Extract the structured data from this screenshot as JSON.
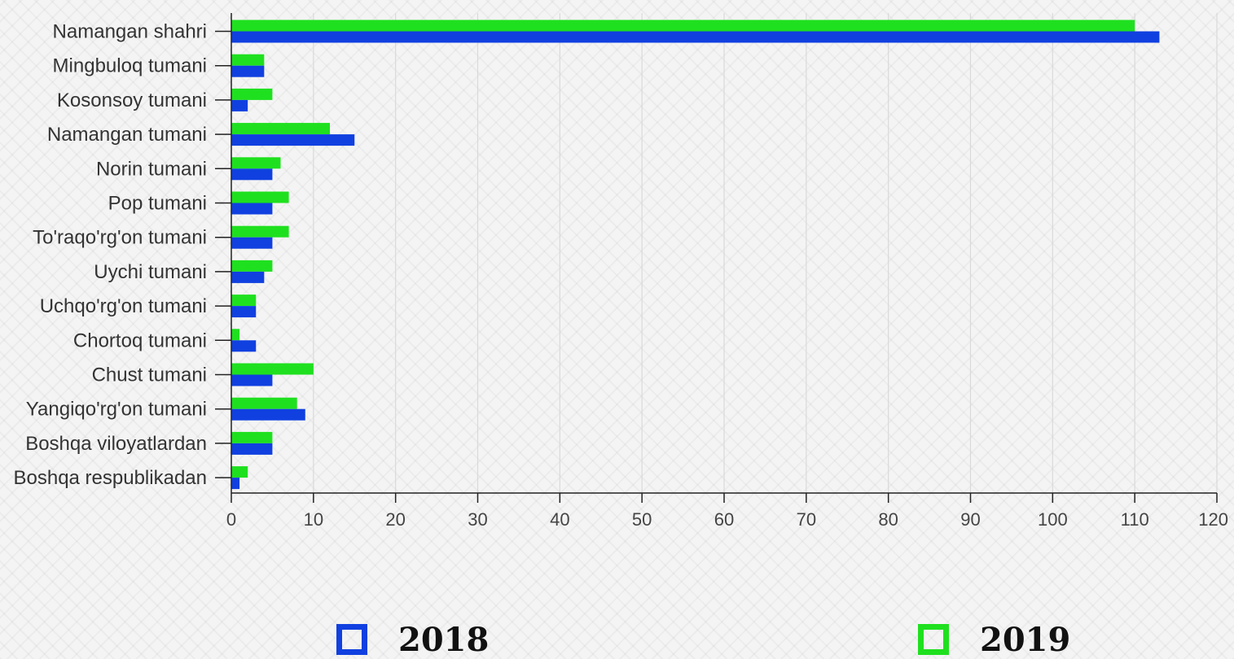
{
  "chart_data": {
    "type": "bar",
    "orientation": "horizontal",
    "categories": [
      "Namangan shahri",
      "Mingbuloq tumani",
      "Kosonsoy tumani",
      "Namangan tumani",
      "Norin tumani",
      "Pop tumani",
      "To'raqo'rg'on tumani",
      "Uychi tumani",
      "Uchqo'rg'on tumani",
      "Chortoq tumani",
      "Chust tumani",
      "Yangiqo'rg'on tumani",
      "Boshqa viloyatlardan",
      "Boshqa respublikadan"
    ],
    "series": [
      {
        "name": "2018",
        "color": "#1040e0",
        "values": [
          113,
          4,
          2,
          15,
          5,
          5,
          5,
          4,
          3,
          3,
          5,
          9,
          5,
          1
        ]
      },
      {
        "name": "2019",
        "color": "#1fe01f",
        "values": [
          110,
          4,
          5,
          12,
          6,
          7,
          7,
          5,
          3,
          1,
          10,
          8,
          5,
          2
        ]
      }
    ],
    "xlim": [
      0,
      120
    ],
    "xticks": [
      0,
      10,
      20,
      30,
      40,
      50,
      60,
      70,
      80,
      90,
      100,
      110,
      120
    ],
    "grid": true,
    "legend_position": "bottom",
    "title": "",
    "xlabel": "",
    "ylabel": ""
  },
  "legend": {
    "items": [
      {
        "label": "2018",
        "color": "#1040e0"
      },
      {
        "label": "2019",
        "color": "#1fe01f"
      }
    ]
  }
}
